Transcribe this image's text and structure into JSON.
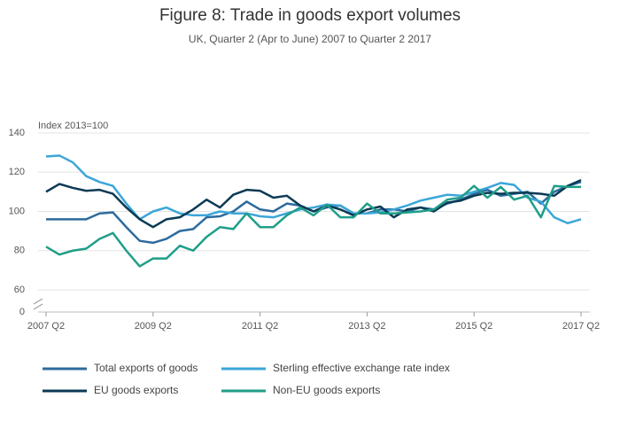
{
  "chart_data": {
    "type": "line",
    "title": "Figure 8: Trade in goods export volumes",
    "subtitle": "UK, Quarter 2 (Apr to June) 2007 to Quarter 2 2017",
    "y_label": "Index 2013=100",
    "categories": [
      "2007 Q2",
      null,
      null,
      null,
      null,
      null,
      null,
      null,
      "2009 Q2",
      null,
      null,
      null,
      null,
      null,
      null,
      null,
      "2011 Q2",
      null,
      null,
      null,
      null,
      null,
      null,
      null,
      "2013 Q2",
      null,
      null,
      null,
      null,
      null,
      null,
      null,
      "2015 Q2",
      null,
      null,
      null,
      null,
      null,
      null,
      null,
      "2017 Q2"
    ],
    "ylim": [
      0,
      140
    ],
    "yticks": [
      0,
      60,
      80,
      100,
      120,
      140
    ],
    "axis_break": [
      0,
      60
    ],
    "grid": true,
    "series": [
      {
        "name": "Total exports of goods",
        "color": "#2c6b9e",
        "values": [
          96,
          96,
          96,
          96,
          99,
          99.5,
          92,
          85,
          84,
          86,
          90,
          91,
          97,
          97.5,
          100,
          105,
          101,
          100,
          104,
          103,
          100,
          102,
          103,
          99,
          99,
          101,
          101,
          100,
          102,
          101,
          104,
          106,
          109,
          111,
          108,
          109,
          110,
          104,
          110,
          113,
          115
        ]
      },
      {
        "name": "Sterling effective exchange rate index",
        "color": "#3ba6d8",
        "values": [
          128,
          128.5,
          125,
          118,
          115,
          113,
          104,
          96,
          100,
          102,
          99,
          98,
          98,
          100,
          99,
          99,
          97.5,
          97,
          99,
          101,
          102,
          103.5,
          103,
          99,
          99,
          99.5,
          101,
          103,
          105.5,
          107,
          108.5,
          108,
          110,
          112,
          114.5,
          113.5,
          107,
          105,
          97,
          94,
          96
        ]
      },
      {
        "name": "EU goods exports",
        "color": "#0b3a54",
        "values": [
          110,
          114,
          112,
          110.5,
          111,
          109,
          102,
          96,
          92,
          96,
          97,
          101,
          106,
          102,
          108.5,
          111,
          110.5,
          107,
          108,
          103,
          100,
          103,
          101,
          98,
          101,
          102.5,
          97,
          101,
          102,
          100,
          104.5,
          105.5,
          108,
          109.5,
          109,
          109.5,
          109.5,
          109,
          108,
          113,
          116
        ]
      },
      {
        "name": "Non-EU goods exports",
        "color": "#1f9e89",
        "values": [
          82,
          78,
          80,
          81,
          86,
          89,
          80,
          72,
          76,
          76,
          82.5,
          80,
          87,
          92,
          91,
          99,
          92,
          92,
          98,
          102,
          98,
          103.5,
          97,
          97,
          104,
          99,
          99,
          99.5,
          100,
          101,
          106,
          107,
          113,
          107,
          112.5,
          106,
          108,
          97,
          113,
          112.5,
          112.5
        ]
      }
    ]
  }
}
